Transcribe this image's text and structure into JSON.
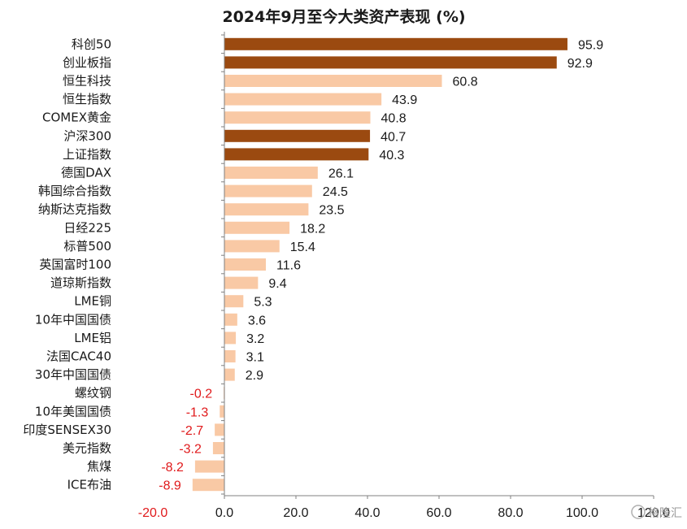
{
  "chart_data": {
    "type": "bar",
    "orientation": "horizontal",
    "title": "2024年9月至今大类资产表现 (%)",
    "categories": [
      "科创50",
      "创业板指",
      "恒生科技",
      "恒生指数",
      "COMEX黄金",
      "沪深300",
      "上证指数",
      "德国DAX",
      "韩国综合指数",
      "纳斯达克指数",
      "日经225",
      "标普500",
      "英国富时100",
      "道琼斯指数",
      "LME铜",
      "10年中国国债",
      "LME铝",
      "法国CAC40",
      "30年中国国债",
      "螺纹钢",
      "10年美国国债",
      "印度SENSEX30",
      "美元指数",
      "焦煤",
      "ICE布油"
    ],
    "values": [
      95.9,
      92.9,
      60.8,
      43.9,
      40.8,
      40.7,
      40.3,
      26.1,
      24.5,
      23.5,
      18.2,
      15.4,
      11.6,
      9.4,
      5.3,
      3.6,
      3.2,
      3.1,
      2.9,
      -0.2,
      -1.3,
      -2.7,
      -3.2,
      -8.2,
      -8.9
    ],
    "value_labels": [
      "95.9",
      "92.9",
      "60.8",
      "43.9",
      "40.8",
      "40.7",
      "40.3",
      "26.1",
      "24.5",
      "23.5",
      "18.2",
      "15.4",
      "11.6",
      "9.4",
      "5.3",
      "3.6",
      "3.2",
      "3.1",
      "2.9",
      "-0.2",
      "-1.3",
      "-2.7",
      "-3.2",
      "-8.2",
      "-8.9"
    ],
    "highlighted": [
      "科创50",
      "创业板指",
      "沪深300",
      "上证指数"
    ],
    "xlim": [
      -20,
      120
    ],
    "xticks": [
      "-20.0",
      "0.0",
      "20.0",
      "40.0",
      "60.0",
      "80.0",
      "100.0",
      "120.0"
    ],
    "grid": false,
    "legend": "none",
    "colors": {
      "highlight": "#9b4a10",
      "default": "#f9c9a5",
      "negative_label": "#e0191b",
      "positive_label": "#1a1a1a",
      "axis": "#808080"
    }
  },
  "watermark": {
    "text": "格隆汇"
  }
}
